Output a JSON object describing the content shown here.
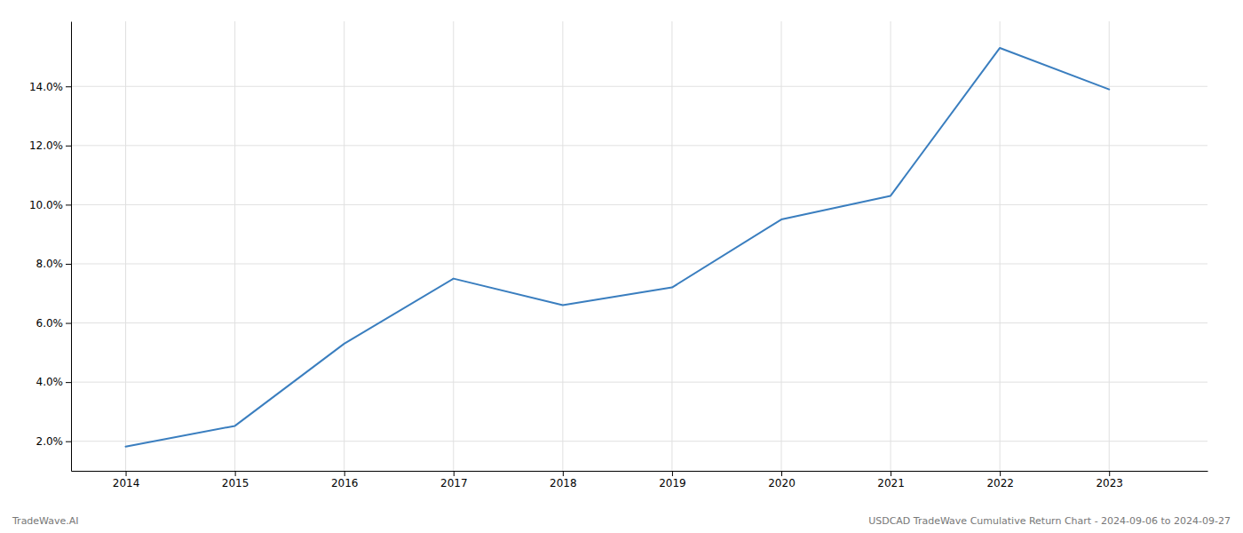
{
  "chart_data": {
    "type": "line",
    "x": [
      2014,
      2015,
      2016,
      2017,
      2018,
      2019,
      2020,
      2021,
      2022,
      2023
    ],
    "values": [
      1.82,
      2.52,
      5.3,
      7.5,
      6.6,
      7.2,
      9.5,
      10.3,
      15.3,
      13.9
    ],
    "color": "#3a7ebf",
    "xlim": [
      2013.5,
      2023.9
    ],
    "ylim": [
      1.0,
      16.2
    ],
    "xticks": [
      2014,
      2015,
      2016,
      2017,
      2018,
      2019,
      2020,
      2021,
      2022,
      2023
    ],
    "yticks": [
      {
        "value": 2.0,
        "label": "2.0%"
      },
      {
        "value": 4.0,
        "label": "4.0%"
      },
      {
        "value": 6.0,
        "label": "6.0%"
      },
      {
        "value": 8.0,
        "label": "8.0%"
      },
      {
        "value": 10.0,
        "label": "10.0%"
      },
      {
        "value": 12.0,
        "label": "12.0%"
      },
      {
        "value": 14.0,
        "label": "14.0%"
      }
    ],
    "grid": true,
    "annotations": [
      "TradeWave.AI",
      "USDCAD TradeWave Cumulative Return Chart - 2024-09-06 to 2024-09-27"
    ]
  }
}
